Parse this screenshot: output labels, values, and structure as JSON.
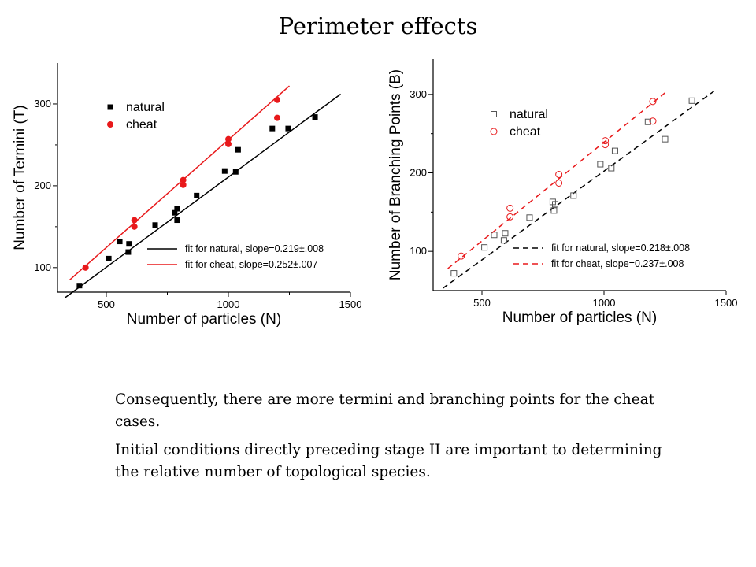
{
  "slide": {
    "title": "Perimeter effects",
    "notes": [
      "Consequently, there are more termini and branching points for the cheat cases.",
      "Initial conditions directly preceding stage II are important to determining the relative number of topological species."
    ]
  },
  "chart_data": [
    {
      "type": "scatter",
      "xlabel": "Number of particles (N)",
      "ylabel": "Number of Termini (T)",
      "xlim": [
        300,
        1500
      ],
      "ylim": [
        70,
        350
      ],
      "xticks": [
        500,
        1000,
        1500
      ],
      "yticks": [
        100,
        200,
        300
      ],
      "grid": false,
      "legend_position": "top-left",
      "series": [
        {
          "name": "natural",
          "marker": "filled-square",
          "color": "#000000",
          "points": [
            [
              390,
              78
            ],
            [
              510,
              111
            ],
            [
              555,
              132
            ],
            [
              590,
              119
            ],
            [
              593,
              129
            ],
            [
              700,
              152
            ],
            [
              780,
              167
            ],
            [
              790,
              158
            ],
            [
              790,
              172
            ],
            [
              870,
              188
            ],
            [
              985,
              218
            ],
            [
              1030,
              217
            ],
            [
              1040,
              244
            ],
            [
              1180,
              270
            ],
            [
              1245,
              270
            ],
            [
              1355,
              284
            ]
          ]
        },
        {
          "name": "cheat",
          "marker": "filled-circle",
          "color": "#e8191b",
          "points": [
            [
              415,
              100
            ],
            [
              615,
              150
            ],
            [
              615,
              158
            ],
            [
              815,
              201
            ],
            [
              815,
              207
            ],
            [
              1000,
              251
            ],
            [
              1000,
              257
            ],
            [
              1200,
              283
            ],
            [
              1200,
              305
            ]
          ]
        }
      ],
      "fits": [
        {
          "label": "fit for natural,  slope=0.219±.008",
          "color": "#000000",
          "dashed": false,
          "x": [
            330,
            1460
          ],
          "y": [
            63,
            312
          ]
        },
        {
          "label": "fit for cheat,    slope=0.252±.007",
          "color": "#e8191b",
          "dashed": false,
          "x": [
            350,
            1250
          ],
          "y": [
            85,
            322
          ]
        }
      ]
    },
    {
      "type": "scatter",
      "xlabel": "Number of particles (N)",
      "ylabel": "Number of Branching Points (B)",
      "xlim": [
        300,
        1500
      ],
      "ylim": [
        50,
        345
      ],
      "xticks": [
        500,
        1000,
        1500
      ],
      "yticks": [
        100,
        200,
        300
      ],
      "grid": false,
      "legend_position": "top-left",
      "series": [
        {
          "name": "natural",
          "marker": "open-square",
          "color": "#555555",
          "points": [
            [
              385,
              72
            ],
            [
              510,
              105
            ],
            [
              550,
              121
            ],
            [
              590,
              114
            ],
            [
              595,
              123
            ],
            [
              695,
              143
            ],
            [
              790,
              163
            ],
            [
              795,
              152
            ],
            [
              800,
              160
            ],
            [
              875,
              171
            ],
            [
              985,
              211
            ],
            [
              1030,
              206
            ],
            [
              1045,
              228
            ],
            [
              1180,
              265
            ],
            [
              1250,
              243
            ],
            [
              1360,
              292
            ]
          ]
        },
        {
          "name": "cheat",
          "marker": "open-circle",
          "color": "#e8191b",
          "points": [
            [
              415,
              94
            ],
            [
              615,
              144
            ],
            [
              615,
              155
            ],
            [
              815,
              187
            ],
            [
              815,
              198
            ],
            [
              1005,
              236
            ],
            [
              1005,
              241
            ],
            [
              1200,
              266
            ],
            [
              1200,
              291
            ]
          ]
        }
      ],
      "fits": [
        {
          "label": "fit for natural, slope=0.218±.008",
          "color": "#000000",
          "dashed": true,
          "x": [
            340,
            1450
          ],
          "y": [
            53,
            304
          ]
        },
        {
          "label": "fit for cheat,    slope=0.237±.008",
          "color": "#e8191b",
          "dashed": true,
          "x": [
            360,
            1250
          ],
          "y": [
            78,
            302
          ]
        }
      ]
    }
  ]
}
